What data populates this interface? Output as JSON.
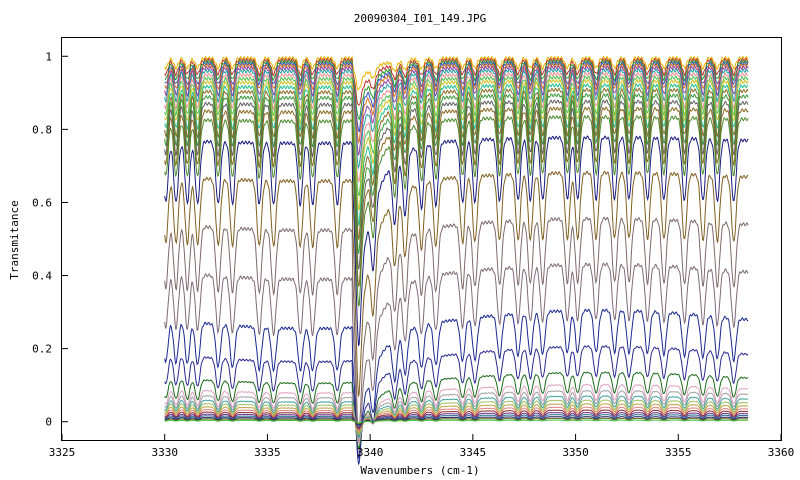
{
  "chart_data": {
    "type": "line",
    "title": "20090304_I01_149.JPG",
    "xlabel": "Wavenumbers (cm-1)",
    "ylabel": "Transmitance",
    "xlim": [
      3325,
      3360
    ],
    "ylim": [
      -0.05,
      1.05
    ],
    "x_ticks": [
      3325,
      3330,
      3335,
      3340,
      3345,
      3350,
      3355,
      3360
    ],
    "y_ticks": [
      0,
      0.2,
      0.4,
      0.6,
      0.8,
      1
    ],
    "x_range": [
      3330,
      3358.4
    ],
    "grid": false,
    "legend": "none",
    "absorption_lines": [
      3330.05,
      3330.55,
      3331.1,
      3331.6,
      3332.6,
      3333.3,
      3334.6,
      3335.3,
      3336.6,
      3337.2,
      3338.4,
      3339.45,
      3340.15,
      3341.2,
      3341.7,
      3342.5,
      3343.2,
      3344.5,
      3345.1,
      3346.3,
      3347.2,
      3347.8,
      3348.4,
      3349.6,
      3350.1,
      3351.0,
      3351.9,
      3352.6,
      3353.5,
      3354.3,
      3355.3,
      3356.2,
      3356.9,
      3357.7
    ],
    "series": [
      {
        "baseline": 0.995,
        "color": "#e8b400"
      },
      {
        "baseline": 0.99,
        "color": "#c03030"
      },
      {
        "baseline": 0.985,
        "color": "#2a9d2a"
      },
      {
        "baseline": 0.98,
        "color": "#3050c0"
      },
      {
        "baseline": 0.975,
        "color": "#d07020"
      },
      {
        "baseline": 0.968,
        "color": "#9040a0"
      },
      {
        "baseline": 0.96,
        "color": "#20a0a0"
      },
      {
        "baseline": 0.95,
        "color": "#f09090"
      },
      {
        "baseline": 0.94,
        "color": "#50c050"
      },
      {
        "baseline": 0.93,
        "color": "#d0c020"
      },
      {
        "baseline": 0.918,
        "color": "#20c090"
      },
      {
        "baseline": 0.905,
        "color": "#8a6a20"
      },
      {
        "baseline": 0.89,
        "color": "#3a9a3a"
      },
      {
        "baseline": 0.872,
        "color": "#606060"
      },
      {
        "baseline": 0.852,
        "color": "#8a6a20"
      },
      {
        "baseline": 0.828,
        "color": "#4a8a2a"
      },
      {
        "baseline": 0.77,
        "color": "#1a1a80"
      },
      {
        "baseline": 0.67,
        "color": "#806020"
      },
      {
        "baseline": 0.54,
        "color": "#806a6a"
      },
      {
        "baseline": 0.41,
        "color": "#806a7a"
      },
      {
        "baseline": 0.28,
        "color": "#1a2a90"
      },
      {
        "baseline": 0.185,
        "color": "#2a2a90"
      },
      {
        "baseline": 0.12,
        "color": "#1a6a1a"
      },
      {
        "baseline": 0.09,
        "color": "#e0a0c0"
      },
      {
        "baseline": 0.075,
        "color": "#a0a0a0"
      },
      {
        "baseline": 0.062,
        "color": "#40a0a0"
      },
      {
        "baseline": 0.052,
        "color": "#a0c060"
      },
      {
        "baseline": 0.043,
        "color": "#c0a040"
      },
      {
        "baseline": 0.035,
        "color": "#e08080"
      },
      {
        "baseline": 0.028,
        "color": "#8a2a2a"
      },
      {
        "baseline": 0.022,
        "color": "#6a2a8a"
      },
      {
        "baseline": 0.017,
        "color": "#2a6a8a"
      },
      {
        "baseline": 0.012,
        "color": "#1a1a60"
      },
      {
        "baseline": 0.008,
        "color": "#6a6a20"
      },
      {
        "baseline": 0.004,
        "color": "#40c040"
      }
    ]
  }
}
